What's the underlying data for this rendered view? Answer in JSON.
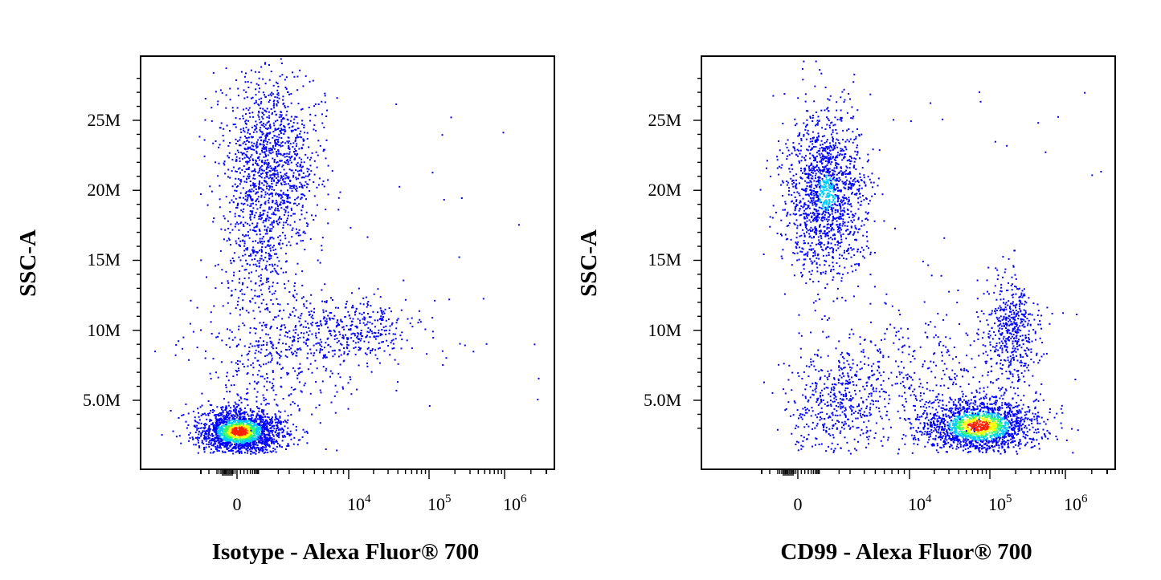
{
  "chart_data": [
    {
      "type": "scatter",
      "subtype": "flow-cytometry density dot plot",
      "xlabel": "Isotype - Alexa Fluor® 700",
      "ylabel": "SSC-A",
      "x_scale": "biexponential",
      "x_ticks": [
        {
          "value": 0,
          "base": "0",
          "exp": ""
        },
        {
          "value": 10000,
          "base": "10",
          "exp": "4"
        },
        {
          "value": 100000,
          "base": "10",
          "exp": "5"
        },
        {
          "value": 1000000,
          "base": "10",
          "exp": "6"
        }
      ],
      "y_ticks": [
        {
          "value": 5000000,
          "label": "5.0M"
        },
        {
          "value": 10000000,
          "label": "10M"
        },
        {
          "value": 15000000,
          "label": "15M"
        },
        {
          "value": 20000000,
          "label": "20M"
        },
        {
          "value": 25000000,
          "label": "25M"
        }
      ],
      "ylim": [
        0,
        29500000
      ],
      "populations": [
        {
          "name": "",
          "x_center": 0,
          "y_center": 3000000,
          "density": "high"
        },
        {
          "name": "",
          "x_center": 500,
          "y_center": 19000000,
          "density": "medium"
        },
        {
          "name": "",
          "x_center": 15000,
          "y_center": 10000000,
          "density": "low"
        }
      ]
    },
    {
      "type": "scatter",
      "subtype": "flow-cytometry density dot plot",
      "xlabel": "CD99 - Alexa Fluor® 700",
      "ylabel": "SSC-A",
      "x_scale": "biexponential",
      "x_ticks": [
        {
          "value": 0,
          "base": "0",
          "exp": ""
        },
        {
          "value": 10000,
          "base": "10",
          "exp": "4"
        },
        {
          "value": 100000,
          "base": "10",
          "exp": "5"
        },
        {
          "value": 1000000,
          "base": "10",
          "exp": "6"
        }
      ],
      "y_ticks": [
        {
          "value": 5000000,
          "label": "5.0M"
        },
        {
          "value": 10000000,
          "label": "10M"
        },
        {
          "value": 15000000,
          "label": "15M"
        },
        {
          "value": 20000000,
          "label": "20M"
        },
        {
          "value": 25000000,
          "label": "25M"
        }
      ],
      "ylim": [
        0,
        29500000
      ],
      "populations": [
        {
          "name": "",
          "x_center": 60000,
          "y_center": 3000000,
          "density": "high"
        },
        {
          "name": "",
          "x_center": 300,
          "y_center": 19000000,
          "density": "medium"
        },
        {
          "name": "",
          "x_center": 120000,
          "y_center": 10000000,
          "density": "low"
        },
        {
          "name": "",
          "x_center": 0,
          "y_center": 4000000,
          "density": "low"
        }
      ]
    }
  ],
  "colors": {
    "density_low": "#0000ff",
    "density_mid": "#00ccff",
    "density_midhigh": "#33ff66",
    "density_high": "#ffff00",
    "density_peak": "#ff2200",
    "frame": "#000000"
  }
}
